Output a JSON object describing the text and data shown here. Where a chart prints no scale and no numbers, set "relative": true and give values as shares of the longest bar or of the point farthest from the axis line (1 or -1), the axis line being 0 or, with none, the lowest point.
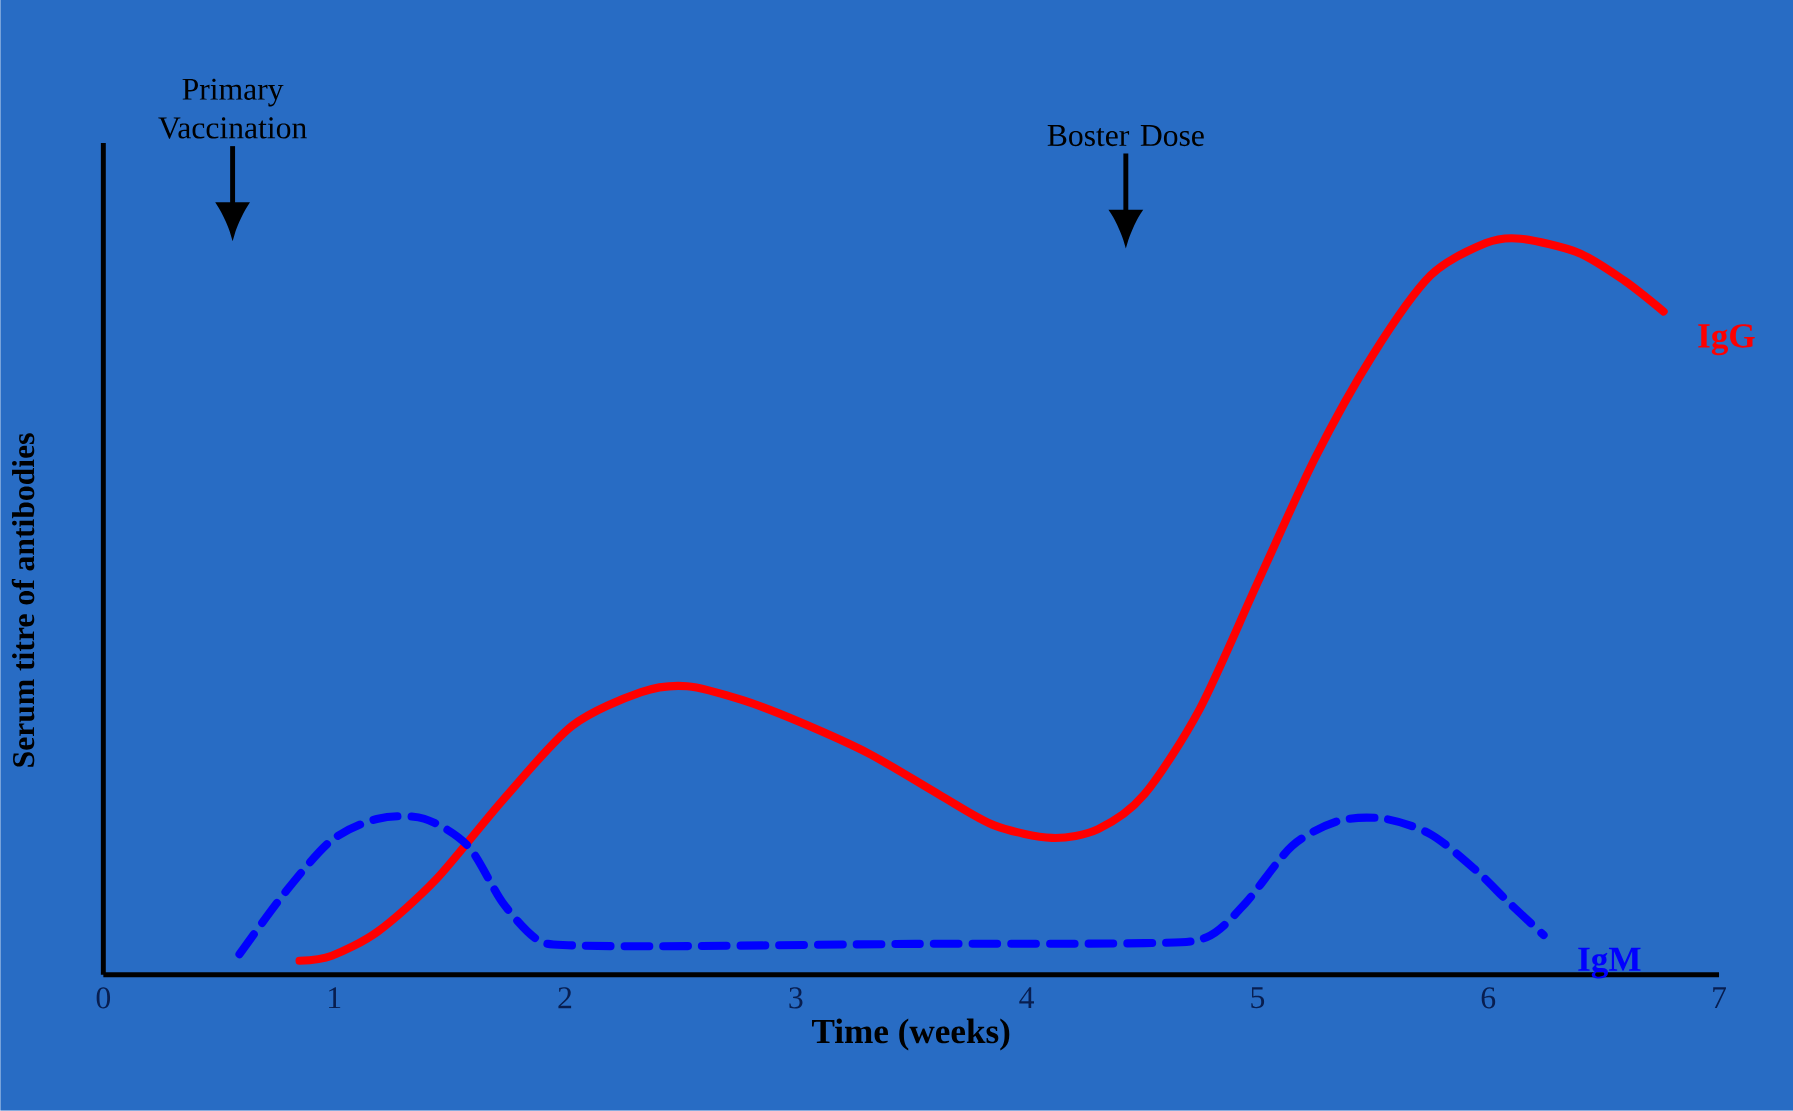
{
  "chart_data": {
    "type": "line",
    "relative": true,
    "xlabel": "Time (weeks)",
    "ylabel": "Serum titre of antibodies",
    "xlim": [
      0,
      7
    ],
    "xticks": [
      0,
      1,
      2,
      3,
      4,
      5,
      6,
      7
    ],
    "tick_labels": "x",
    "grid": false,
    "legend": false,
    "annotations": [
      "Primary Vaccination",
      "Boster Dose"
    ],
    "series": [
      {
        "name": "IgG",
        "color": "#ff0000",
        "line_style": "solid",
        "x": [
          0.85,
          0.99,
          1.19,
          1.44,
          1.73,
          2.03,
          2.33,
          2.53,
          2.77,
          3.02,
          3.32,
          3.62,
          3.86,
          4.11,
          4.31,
          4.51,
          4.75,
          5.0,
          5.25,
          5.5,
          5.75,
          5.99,
          6.14,
          6.39,
          6.59,
          6.76
        ],
        "values": [
          0.019,
          0.026,
          0.059,
          0.129,
          0.237,
          0.338,
          0.384,
          0.392,
          0.373,
          0.343,
          0.3,
          0.245,
          0.203,
          0.186,
          0.198,
          0.245,
          0.361,
          0.532,
          0.702,
          0.842,
          0.95,
          0.994,
          1.0,
          0.981,
          0.943,
          0.901
        ]
      },
      {
        "name": "IgM",
        "color": "#0000ff",
        "line_style": "dashed",
        "x": [
          0.59,
          0.79,
          0.99,
          1.19,
          1.39,
          1.58,
          1.73,
          1.88,
          2.03,
          2.53,
          3.52,
          4.51,
          4.78,
          4.95,
          5.15,
          5.35,
          5.55,
          5.75,
          5.94,
          6.09,
          6.24
        ],
        "values": [
          0.028,
          0.113,
          0.183,
          0.212,
          0.212,
          0.175,
          0.098,
          0.048,
          0.04,
          0.039,
          0.042,
          0.043,
          0.051,
          0.098,
          0.175,
          0.209,
          0.212,
          0.191,
          0.144,
          0.098,
          0.054
        ]
      }
    ]
  }
}
